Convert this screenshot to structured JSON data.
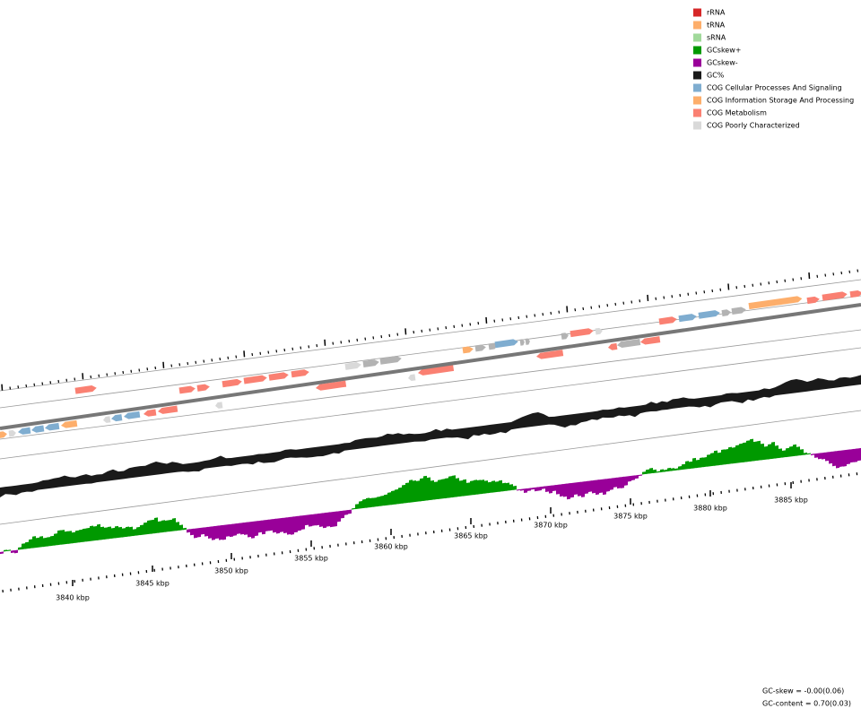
{
  "legend": [
    {
      "label": "rRNA",
      "color": "#d62728"
    },
    {
      "label": "tRNA",
      "color": "#fdae6b"
    },
    {
      "label": "sRNA",
      "color": "#a1d99b"
    },
    {
      "label": "GCskew+",
      "color": "#009900"
    },
    {
      "label": "GCskew-",
      "color": "#990099"
    },
    {
      "label": "GC%",
      "color": "#1a1a1a"
    },
    {
      "label": "COG Cellular Processes And Signaling",
      "color": "#7fadd0"
    },
    {
      "label": "COG Information Storage And Processing",
      "color": "#fdae6b"
    },
    {
      "label": "COG Metabolism",
      "color": "#fa8072"
    },
    {
      "label": "COG Poorly Characterized",
      "color": "#d9d9d9"
    }
  ],
  "scale_labels": [
    "3840 kbp",
    "3845 kbp",
    "3850 kbp",
    "3855 kbp",
    "3860 kbp",
    "3865 kbp",
    "3870 kbp",
    "3875 kbp",
    "3880 kbp",
    "3885 kbp"
  ],
  "stats": [
    "GC-skew = -0.00(0.06)",
    "GC-content = 0.70(0.03)"
  ]
}
